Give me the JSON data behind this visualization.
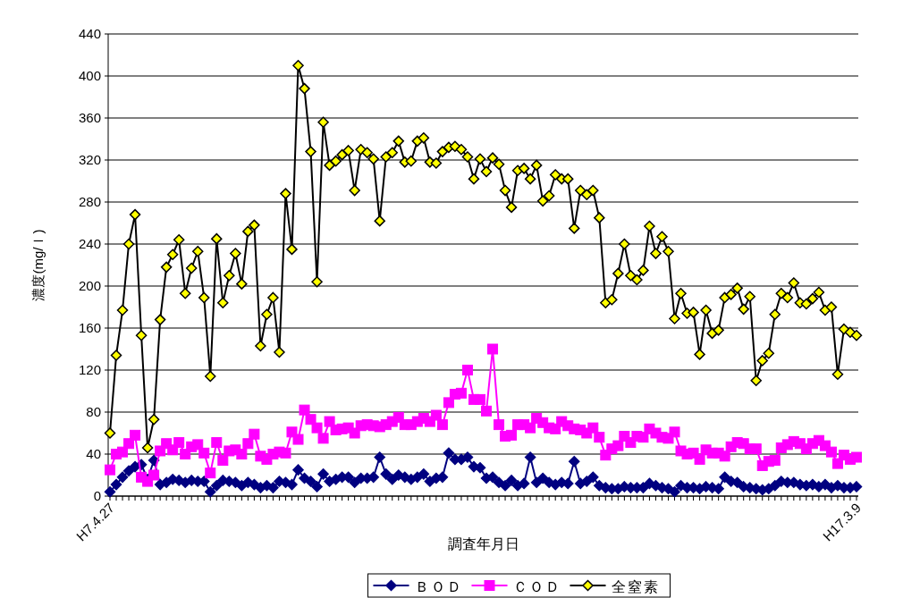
{
  "chart_data": {
    "type": "line",
    "xlabel": "調査年月日",
    "ylabel": "濃度(mg/ｌ)",
    "categories": [
      "H7.4.27",
      null,
      null,
      null,
      null,
      null,
      null,
      null,
      null,
      null,
      null,
      null,
      null,
      null,
      null,
      null,
      null,
      null,
      null,
      null,
      null,
      null,
      null,
      null,
      null,
      null,
      null,
      null,
      null,
      null,
      null,
      null,
      null,
      null,
      null,
      null,
      null,
      null,
      null,
      null,
      null,
      null,
      null,
      null,
      null,
      null,
      null,
      null,
      null,
      null,
      null,
      null,
      null,
      null,
      null,
      null,
      null,
      null,
      null,
      null,
      null,
      null,
      null,
      null,
      null,
      null,
      null,
      null,
      null,
      null,
      null,
      null,
      null,
      null,
      null,
      null,
      null,
      null,
      null,
      null,
      null,
      null,
      null,
      null,
      null,
      null,
      null,
      null,
      null,
      null,
      null,
      null,
      null,
      null,
      null,
      null,
      null,
      null,
      null,
      null,
      null,
      null,
      null,
      null,
      null,
      null,
      null,
      null,
      null,
      null,
      null,
      null,
      null,
      null,
      null,
      null,
      null,
      null,
      null,
      "H17.3.9"
    ],
    "ylim": [
      0,
      440
    ],
    "yticks": [
      0,
      40,
      80,
      120,
      160,
      200,
      240,
      280,
      320,
      360,
      400,
      440
    ],
    "grid": "y",
    "legend": "bottom",
    "series": [
      {
        "name": "ＢＯＤ",
        "color": "#000080",
        "marker": "diamond",
        "values": [
          4,
          11,
          18,
          24,
          28,
          30,
          16,
          34,
          11,
          13,
          16,
          15,
          13,
          15,
          14,
          14,
          4,
          10,
          15,
          14,
          13,
          10,
          13,
          11,
          8,
          10,
          8,
          14,
          13,
          11,
          25,
          17,
          14,
          9,
          21,
          14,
          16,
          18,
          18,
          13,
          17,
          17,
          18,
          37,
          21,
          16,
          20,
          18,
          16,
          18,
          21,
          14,
          17,
          18,
          41,
          35,
          35,
          37,
          28,
          27,
          17,
          18,
          13,
          10,
          15,
          10,
          12,
          37,
          13,
          17,
          13,
          11,
          13,
          12,
          33,
          12,
          14,
          18,
          10,
          8,
          7,
          7,
          9,
          8,
          8,
          8,
          12,
          10,
          8,
          7,
          4,
          10,
          8,
          8,
          7,
          9,
          8,
          7,
          18,
          14,
          13,
          9,
          8,
          7,
          6,
          7,
          10,
          14,
          13,
          13,
          11,
          10,
          11,
          9,
          11,
          8,
          10,
          8,
          8,
          9
        ]
      },
      {
        "name": "ＣＯＤ",
        "color": "#ff00ff",
        "marker": "square",
        "values": [
          25,
          40,
          42,
          50,
          58,
          18,
          14,
          20,
          43,
          50,
          44,
          51,
          40,
          47,
          49,
          41,
          22,
          51,
          34,
          43,
          44,
          40,
          50,
          59,
          38,
          35,
          40,
          42,
          41,
          61,
          54,
          82,
          73,
          65,
          55,
          71,
          63,
          64,
          65,
          60,
          67,
          68,
          67,
          66,
          68,
          71,
          75,
          68,
          68,
          71,
          74,
          71,
          77,
          68,
          89,
          97,
          98,
          120,
          92,
          92,
          81,
          140,
          68,
          57,
          58,
          68,
          68,
          65,
          74,
          70,
          65,
          64,
          71,
          67,
          64,
          63,
          60,
          65,
          56,
          39,
          45,
          48,
          57,
          51,
          57,
          56,
          64,
          60,
          56,
          55,
          61,
          43,
          40,
          41,
          35,
          44,
          41,
          41,
          38,
          47,
          51,
          50,
          45,
          45,
          29,
          33,
          34,
          46,
          49,
          52,
          50,
          45,
          50,
          53,
          48,
          42,
          31,
          39,
          35,
          37
        ]
      },
      {
        "name": "全窒素",
        "color": "#000000",
        "marker": "diamond",
        "colors": [
          "#ffff00",
          "#ffff00",
          "#ffff00",
          "#ffff00",
          "#ffff00",
          "#ffff00",
          "#ffff00",
          "#ffff00",
          "#ffff00",
          "#ffff00",
          "#ffff00",
          "#ffff00",
          "#ffff00",
          "#ffff00",
          "#ffff00",
          "#ffff00",
          "#ffff00",
          "#ffff00",
          "#ffff00",
          "#ffff00",
          "#ffff00",
          "#ffff00",
          "#ffff00",
          "#ffff00",
          "#ffff00",
          "#ffff00",
          "#ffff00",
          "#ffff00",
          "#ffff00",
          "#ffff00",
          "#ffff00",
          "#ffff00",
          "#ffff00",
          "#ffff00",
          "#ffff00",
          "#ffff00",
          "#ffff00",
          "#ffff00",
          "#ffff00",
          "#ffff00",
          "#ffff00",
          "#ffff00",
          "#ffff00",
          "#ffff00",
          "#ffff00",
          "#ffff00",
          "#ffff00",
          "#ffff00",
          "#ffff00",
          "#ffff00",
          "#ffff00",
          "#ffff00",
          "#ffff00",
          "#ffff00",
          "#ffff00",
          "#ffff00",
          "#ffff00",
          "#ffff00",
          "#ffff00",
          "#ffff00",
          "#ffff00",
          "#ffff00",
          "#ffff00",
          "#ffff00",
          "#ffff00",
          "#ffff00",
          "#ffff00",
          "#ffff00",
          "#ffff00",
          "#ffff00",
          "#ffff00",
          "#ffff00",
          "#ffff00",
          "#ffff00",
          "#ffff00",
          "#ffff00",
          "#ffff00",
          "#ffff00",
          "#ffff00",
          "#ffff00",
          "#ffff00",
          "#ffff00",
          "#ffff00",
          "#ffff00",
          "#ffff00",
          "#ffff00",
          "#ffff00",
          "#ffff00",
          "#ffff00",
          "#ffff00",
          "#ffff00",
          "#ffff00",
          "#ffff00",
          "#ffff00",
          "#ffff00",
          "#ffff00",
          "#ffff00",
          "#ffff00",
          "#ffff00",
          "#ffff00",
          "#ffff00",
          "#ffff00",
          "#ffff00",
          "#ffff00",
          "#ffff00",
          "#ffff00",
          "#ffff00",
          "#ffff00",
          "#ffff00",
          "#ffff00",
          "#ffff00",
          "#ffff00",
          "#ffff00",
          "#ffff00",
          "#ffff00",
          "#ffff00",
          "#ffff00",
          "#ffff00",
          "#ffff00",
          "#ffff00"
        ],
        "values": [
          60,
          134,
          177,
          240,
          268,
          153,
          46,
          73,
          168,
          218,
          230,
          244,
          193,
          217,
          233,
          189,
          114,
          245,
          184,
          210,
          231,
          202,
          252,
          258,
          143,
          173,
          189,
          137,
          288,
          235,
          410,
          388,
          328,
          204,
          356,
          315,
          319,
          325,
          329,
          291,
          330,
          327,
          321,
          262,
          323,
          327,
          338,
          318,
          319,
          338,
          341,
          318,
          317,
          328,
          332,
          333,
          330,
          323,
          302,
          321,
          309,
          322,
          316,
          291,
          275,
          310,
          312,
          302,
          315,
          281,
          286,
          306,
          302,
          302,
          255,
          291,
          287,
          291,
          265,
          184,
          187,
          212,
          240,
          210,
          206,
          215,
          257,
          231,
          247,
          233,
          169,
          193,
          174,
          175,
          135,
          177,
          155,
          158,
          189,
          192,
          198,
          178,
          190,
          110,
          129,
          136,
          173,
          193,
          189,
          203,
          184,
          183,
          188,
          194,
          177,
          180,
          116,
          159,
          156,
          153
        ]
      }
    ]
  }
}
